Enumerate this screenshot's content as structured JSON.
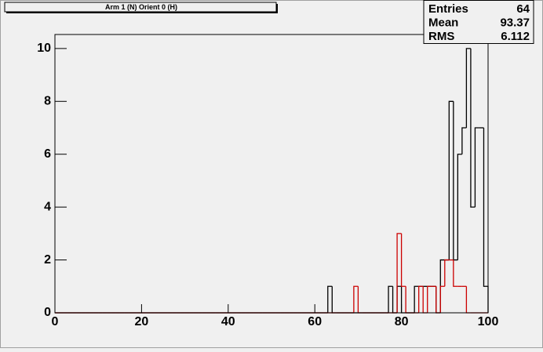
{
  "chart_data": {
    "type": "histogram",
    "title": "Arm 1 (N) Orient 0 (H)",
    "stats": [
      {
        "label": "Entries",
        "value": 64
      },
      {
        "label": "Mean",
        "value": 93.37
      },
      {
        "label": "RMS",
        "value": 6.112
      }
    ],
    "bins": [
      0,
      1,
      2,
      3,
      4,
      5,
      6,
      7,
      8,
      9,
      10,
      11,
      12,
      13,
      14,
      15,
      16,
      17,
      18,
      19,
      20,
      21,
      22,
      23,
      24,
      25,
      26,
      27,
      28,
      29,
      30,
      31,
      32,
      33,
      34,
      35,
      36,
      37,
      38,
      39,
      40,
      41,
      42,
      43,
      44,
      45,
      46,
      47,
      48,
      49,
      50,
      51,
      52,
      53,
      54,
      55,
      56,
      57,
      58,
      59,
      60,
      61,
      62,
      63,
      64,
      65,
      66,
      67,
      68,
      69,
      70,
      71,
      72,
      73,
      74,
      75,
      76,
      77,
      78,
      79,
      80,
      81,
      82,
      83,
      84,
      85,
      86,
      87,
      88,
      89,
      90,
      91,
      92,
      93,
      94,
      95,
      96,
      97,
      98,
      99,
      100
    ],
    "series": [
      {
        "color": "#000000",
        "values": [
          0,
          0,
          0,
          0,
          0,
          0,
          0,
          0,
          0,
          0,
          0,
          0,
          0,
          0,
          0,
          0,
          0,
          0,
          0,
          0,
          0,
          0,
          0,
          0,
          0,
          0,
          0,
          0,
          0,
          0,
          0,
          0,
          0,
          0,
          0,
          0,
          0,
          0,
          0,
          0,
          0,
          0,
          0,
          0,
          0,
          0,
          0,
          0,
          0,
          0,
          0,
          0,
          0,
          0,
          0,
          0,
          0,
          0,
          0,
          0,
          0,
          0,
          0,
          1,
          0,
          0,
          0,
          0,
          0,
          0,
          0,
          0,
          0,
          0,
          0,
          0,
          0,
          1,
          0,
          1,
          0,
          0,
          0,
          1,
          1,
          1,
          1,
          1,
          0,
          2,
          2,
          8,
          2,
          6,
          7,
          10,
          4,
          7,
          7,
          1
        ]
      },
      {
        "color": "#cc0000",
        "values": [
          0,
          0,
          0,
          0,
          0,
          0,
          0,
          0,
          0,
          0,
          0,
          0,
          0,
          0,
          0,
          0,
          0,
          0,
          0,
          0,
          0,
          0,
          0,
          0,
          0,
          0,
          0,
          0,
          0,
          0,
          0,
          0,
          0,
          0,
          0,
          0,
          0,
          0,
          0,
          0,
          0,
          0,
          0,
          0,
          0,
          0,
          0,
          0,
          0,
          0,
          0,
          0,
          0,
          0,
          0,
          0,
          0,
          0,
          0,
          0,
          0,
          0,
          0,
          0,
          0,
          0,
          0,
          0,
          0,
          1,
          0,
          0,
          0,
          0,
          0,
          0,
          0,
          0,
          0,
          3,
          1,
          0,
          0,
          0,
          1,
          0,
          1,
          1,
          0,
          1,
          2,
          2,
          1,
          1,
          1,
          0,
          0,
          0,
          0,
          0
        ]
      }
    ],
    "xlim": [
      0,
      100
    ],
    "xticks": [
      0,
      20,
      40,
      60,
      80,
      100
    ],
    "ylim": [
      0,
      10.53
    ],
    "yticks": [
      0,
      2,
      4,
      6,
      8,
      10
    ]
  }
}
